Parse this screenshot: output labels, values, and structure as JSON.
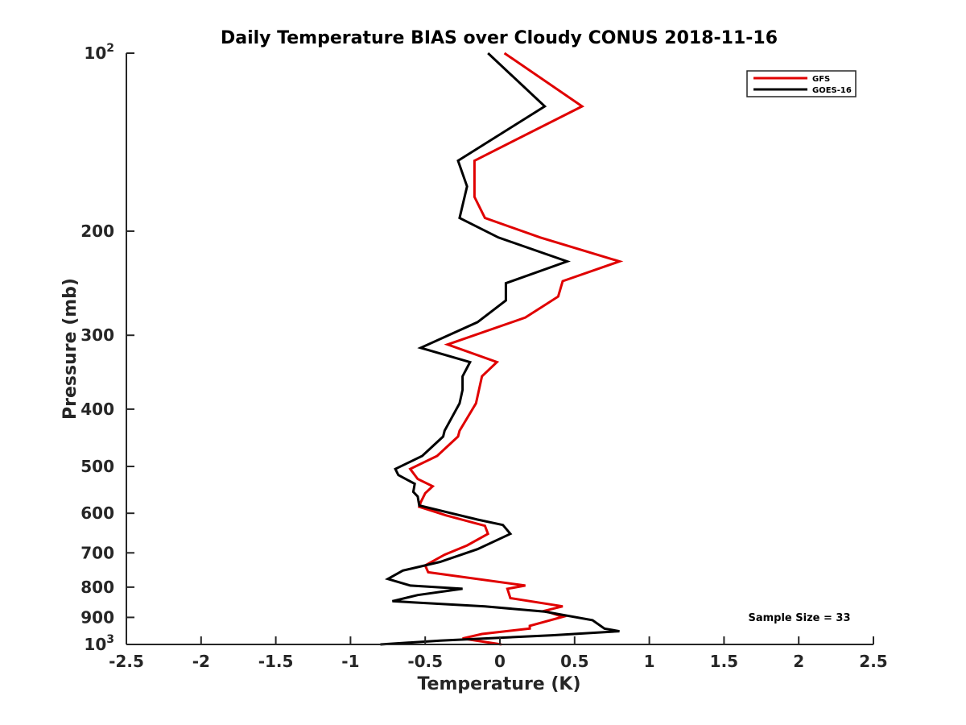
{
  "chart_data": {
    "type": "line",
    "title": "Daily Temperature BIAS over Cloudy CONUS 2018-11-16",
    "xlabel": "Temperature (K)",
    "ylabel": "Pressure (mb)",
    "xlim": [
      -2.5,
      2.5
    ],
    "ylim": [
      100,
      1000
    ],
    "y_scale": "log",
    "y_reversed": true,
    "grid": false,
    "legend_position": "top-right",
    "x_tick_labels": [
      "-2.5",
      "-2",
      "-1.5",
      "-1",
      "-0.5",
      "0",
      "0.5",
      "1",
      "1.5",
      "2",
      "2.5"
    ],
    "y_ticks": [
      {
        "value": 100,
        "label": "10",
        "exp": "2"
      },
      {
        "value": 200,
        "label": "200"
      },
      {
        "value": 300,
        "label": "300"
      },
      {
        "value": 400,
        "label": "400"
      },
      {
        "value": 500,
        "label": "500"
      },
      {
        "value": 600,
        "label": "600"
      },
      {
        "value": 700,
        "label": "700"
      },
      {
        "value": 800,
        "label": "800"
      },
      {
        "value": 900,
        "label": "900"
      },
      {
        "value": 1000,
        "label": "10",
        "exp": "3"
      }
    ],
    "annotation": "Sample Size = 33",
    "series": [
      {
        "name": "GFS",
        "color": "#e00000",
        "points": [
          [
            0.03,
            100
          ],
          [
            0.55,
            123
          ],
          [
            -0.17,
            152
          ],
          [
            -0.17,
            175
          ],
          [
            -0.1,
            190
          ],
          [
            0.27,
            205
          ],
          [
            0.8,
            225
          ],
          [
            0.42,
            243
          ],
          [
            0.39,
            258
          ],
          [
            0.17,
            280
          ],
          [
            -0.35,
            311
          ],
          [
            -0.02,
            333
          ],
          [
            -0.12,
            352
          ],
          [
            -0.14,
            371
          ],
          [
            -0.16,
            391
          ],
          [
            -0.27,
            435
          ],
          [
            -0.28,
            445
          ],
          [
            -0.42,
            480
          ],
          [
            -0.6,
            505
          ],
          [
            -0.55,
            525
          ],
          [
            -0.45,
            540
          ],
          [
            -0.5,
            555
          ],
          [
            -0.53,
            575
          ],
          [
            -0.54,
            585
          ],
          [
            -0.36,
            605
          ],
          [
            -0.1,
            630
          ],
          [
            -0.08,
            650
          ],
          [
            -0.22,
            680
          ],
          [
            -0.37,
            705
          ],
          [
            -0.5,
            735
          ],
          [
            -0.48,
            755
          ],
          [
            0.17,
            795
          ],
          [
            0.05,
            805
          ],
          [
            0.07,
            835
          ],
          [
            0.42,
            862
          ],
          [
            0.3,
            877
          ],
          [
            0.42,
            898
          ],
          [
            0.2,
            930
          ],
          [
            0.2,
            940
          ],
          [
            -0.12,
            960
          ],
          [
            -0.25,
            977
          ],
          [
            0.01,
            1000
          ]
        ]
      },
      {
        "name": "GOES-16",
        "color": "#000000",
        "points": [
          [
            -0.08,
            100
          ],
          [
            0.3,
            123
          ],
          [
            -0.28,
            152
          ],
          [
            -0.22,
            168
          ],
          [
            -0.27,
            190
          ],
          [
            -0.01,
            205
          ],
          [
            0.45,
            225
          ],
          [
            0.04,
            245
          ],
          [
            0.04,
            262
          ],
          [
            -0.15,
            285
          ],
          [
            -0.53,
            315
          ],
          [
            -0.2,
            333
          ],
          [
            -0.25,
            352
          ],
          [
            -0.25,
            371
          ],
          [
            -0.27,
            391
          ],
          [
            -0.37,
            435
          ],
          [
            -0.38,
            445
          ],
          [
            -0.52,
            480
          ],
          [
            -0.7,
            505
          ],
          [
            -0.68,
            517
          ],
          [
            -0.57,
            535
          ],
          [
            -0.58,
            552
          ],
          [
            -0.55,
            562
          ],
          [
            -0.54,
            582
          ],
          [
            -0.15,
            615
          ],
          [
            0.02,
            628
          ],
          [
            0.07,
            650
          ],
          [
            -0.15,
            690
          ],
          [
            -0.4,
            725
          ],
          [
            -0.65,
            750
          ],
          [
            -0.75,
            775
          ],
          [
            -0.6,
            795
          ],
          [
            -0.25,
            805
          ],
          [
            -0.55,
            825
          ],
          [
            -0.72,
            845
          ],
          [
            -0.1,
            862
          ],
          [
            0.3,
            880
          ],
          [
            0.62,
            910
          ],
          [
            0.7,
            940
          ],
          [
            0.8,
            950
          ],
          [
            0.35,
            965
          ],
          [
            -0.4,
            985
          ],
          [
            -0.8,
            1000
          ]
        ]
      }
    ]
  }
}
